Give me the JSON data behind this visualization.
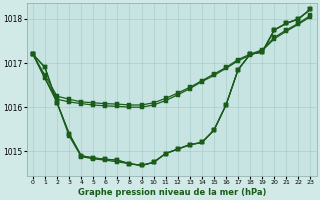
{
  "title": "Graphe pression niveau de la mer (hPa)",
  "background_color": "#d1eae8",
  "plot_bg_color": "#c8e4e2",
  "line_color": "#1a5c1a",
  "grid_color": "#aacfcc",
  "xlim": [
    -0.5,
    23.5
  ],
  "ylim": [
    1014.45,
    1018.35
  ],
  "yticks": [
    1015,
    1016,
    1017,
    1018
  ],
  "xtick_labels": [
    "0",
    "1",
    "2",
    "3",
    "4",
    "5",
    "6",
    "7",
    "8",
    "9",
    "10",
    "11",
    "12",
    "13",
    "14",
    "15",
    "16",
    "17",
    "18",
    "19",
    "20",
    "21",
    "22",
    "23"
  ],
  "marker_size": 2.5,
  "line_width": 0.9,
  "series": [
    {
      "x": [
        0,
        1,
        2,
        3,
        4,
        5,
        6,
        7,
        8,
        9,
        10,
        11,
        12,
        13,
        14,
        15,
        16,
        17,
        18,
        19,
        20,
        21,
        22,
        23
      ],
      "y": [
        1017.2,
        1016.9,
        1016.1,
        1015.4,
        1014.9,
        1014.85,
        1014.82,
        1014.8,
        1014.72,
        1014.68,
        1014.75,
        1014.95,
        1015.05,
        1015.15,
        1015.2,
        1015.48,
        1016.05,
        1016.85,
        1017.2,
        1017.25,
        1017.75,
        1017.9,
        1018.0,
        1018.22
      ]
    },
    {
      "x": [
        0,
        1,
        2,
        3,
        4,
        5,
        6,
        7,
        8,
        9,
        10,
        11,
        12,
        13,
        14,
        15,
        16,
        17,
        18,
        19,
        20,
        21,
        22,
        23
      ],
      "y": [
        1017.2,
        1016.9,
        1016.1,
        1015.4,
        1014.9,
        1014.85,
        1014.82,
        1014.8,
        1014.72,
        1014.68,
        1014.75,
        1014.95,
        1015.05,
        1015.15,
        1015.2,
        1015.48,
        1016.05,
        1016.85,
        1017.2,
        1017.25,
        1017.75,
        1017.9,
        1018.0,
        1018.22
      ]
    },
    {
      "x": [
        0,
        2,
        3,
        4,
        5,
        6,
        7,
        8,
        9,
        10,
        11,
        12,
        13,
        14,
        15,
        16,
        17,
        18,
        19,
        20,
        21,
        22,
        23
      ],
      "y": [
        1017.2,
        1016.1,
        1015.35,
        1014.88,
        1014.83,
        1014.8,
        1014.76,
        1014.72,
        1014.68,
        1014.75,
        1014.95,
        1015.05,
        1015.15,
        1015.2,
        1015.48,
        1016.05,
        1016.85,
        1017.2,
        1017.25,
        1017.75,
        1017.9,
        1018.0,
        1018.22
      ]
    },
    {
      "x": [
        0,
        1,
        2,
        3,
        4,
        5,
        6,
        7,
        8,
        9,
        10,
        11,
        12,
        13,
        14,
        15,
        16,
        17,
        18,
        19,
        20,
        21,
        22,
        23
      ],
      "y": [
        1017.2,
        1016.65,
        1016.18,
        1016.12,
        1016.08,
        1016.05,
        1016.03,
        1016.02,
        1016.0,
        1016.0,
        1016.05,
        1016.15,
        1016.28,
        1016.42,
        1016.58,
        1016.72,
        1016.88,
        1017.05,
        1017.18,
        1017.28,
        1017.55,
        1017.72,
        1017.88,
        1018.05
      ]
    },
    {
      "x": [
        0,
        1,
        2,
        3,
        4,
        5,
        6,
        7,
        8,
        9,
        10,
        11,
        12,
        13,
        14,
        15,
        16,
        17,
        18,
        19,
        20,
        21,
        22,
        23
      ],
      "y": [
        1017.2,
        1016.72,
        1016.25,
        1016.18,
        1016.12,
        1016.1,
        1016.08,
        1016.07,
        1016.05,
        1016.05,
        1016.1,
        1016.2,
        1016.32,
        1016.45,
        1016.6,
        1016.75,
        1016.9,
        1017.08,
        1017.2,
        1017.3,
        1017.58,
        1017.75,
        1017.9,
        1018.08
      ]
    }
  ]
}
